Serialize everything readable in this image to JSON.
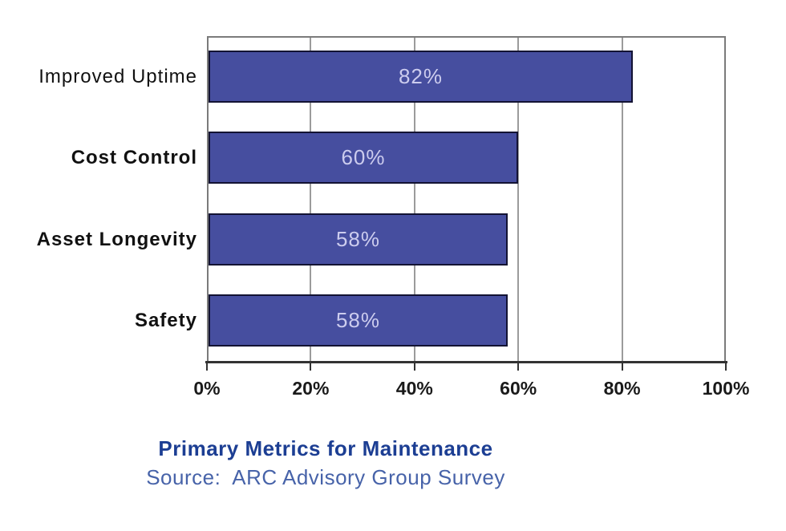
{
  "chart_data": {
    "type": "bar",
    "orientation": "horizontal",
    "title": "Primary Metrics for Maintenance",
    "subtitle": "Source:  ARC Advisory Group Survey",
    "categories": [
      "Improved Uptime",
      "Cost Control",
      "Asset Longevity",
      "Safety"
    ],
    "values": [
      82,
      60,
      58,
      58
    ],
    "value_labels": [
      "82%",
      "60%",
      "58%",
      "58%"
    ],
    "category_label_bold": [
      false,
      true,
      true,
      true
    ],
    "xlim": [
      0,
      100
    ],
    "x_tick_values": [
      0,
      20,
      40,
      60,
      80,
      100
    ],
    "x_tick_labels": [
      "0%",
      "20%",
      "40%",
      "60%",
      "80%",
      "100%"
    ],
    "grid": "vertical-gridlines-every-20pct",
    "legend": "none",
    "colors": {
      "background": "#ffffff",
      "bar_fill": "#464e9f",
      "bar_border": "#131333",
      "bar_value_text": "#ccccee",
      "plot_border": "#7b7b7b",
      "gridline": "#9b9b9b",
      "axis_line": "#333333",
      "tick": "#333333",
      "axis_label_text": "#1a1a1a",
      "category_label_text": "#111111",
      "title_color": "#1c3e93",
      "subtitle_color": "#4763a9"
    }
  }
}
